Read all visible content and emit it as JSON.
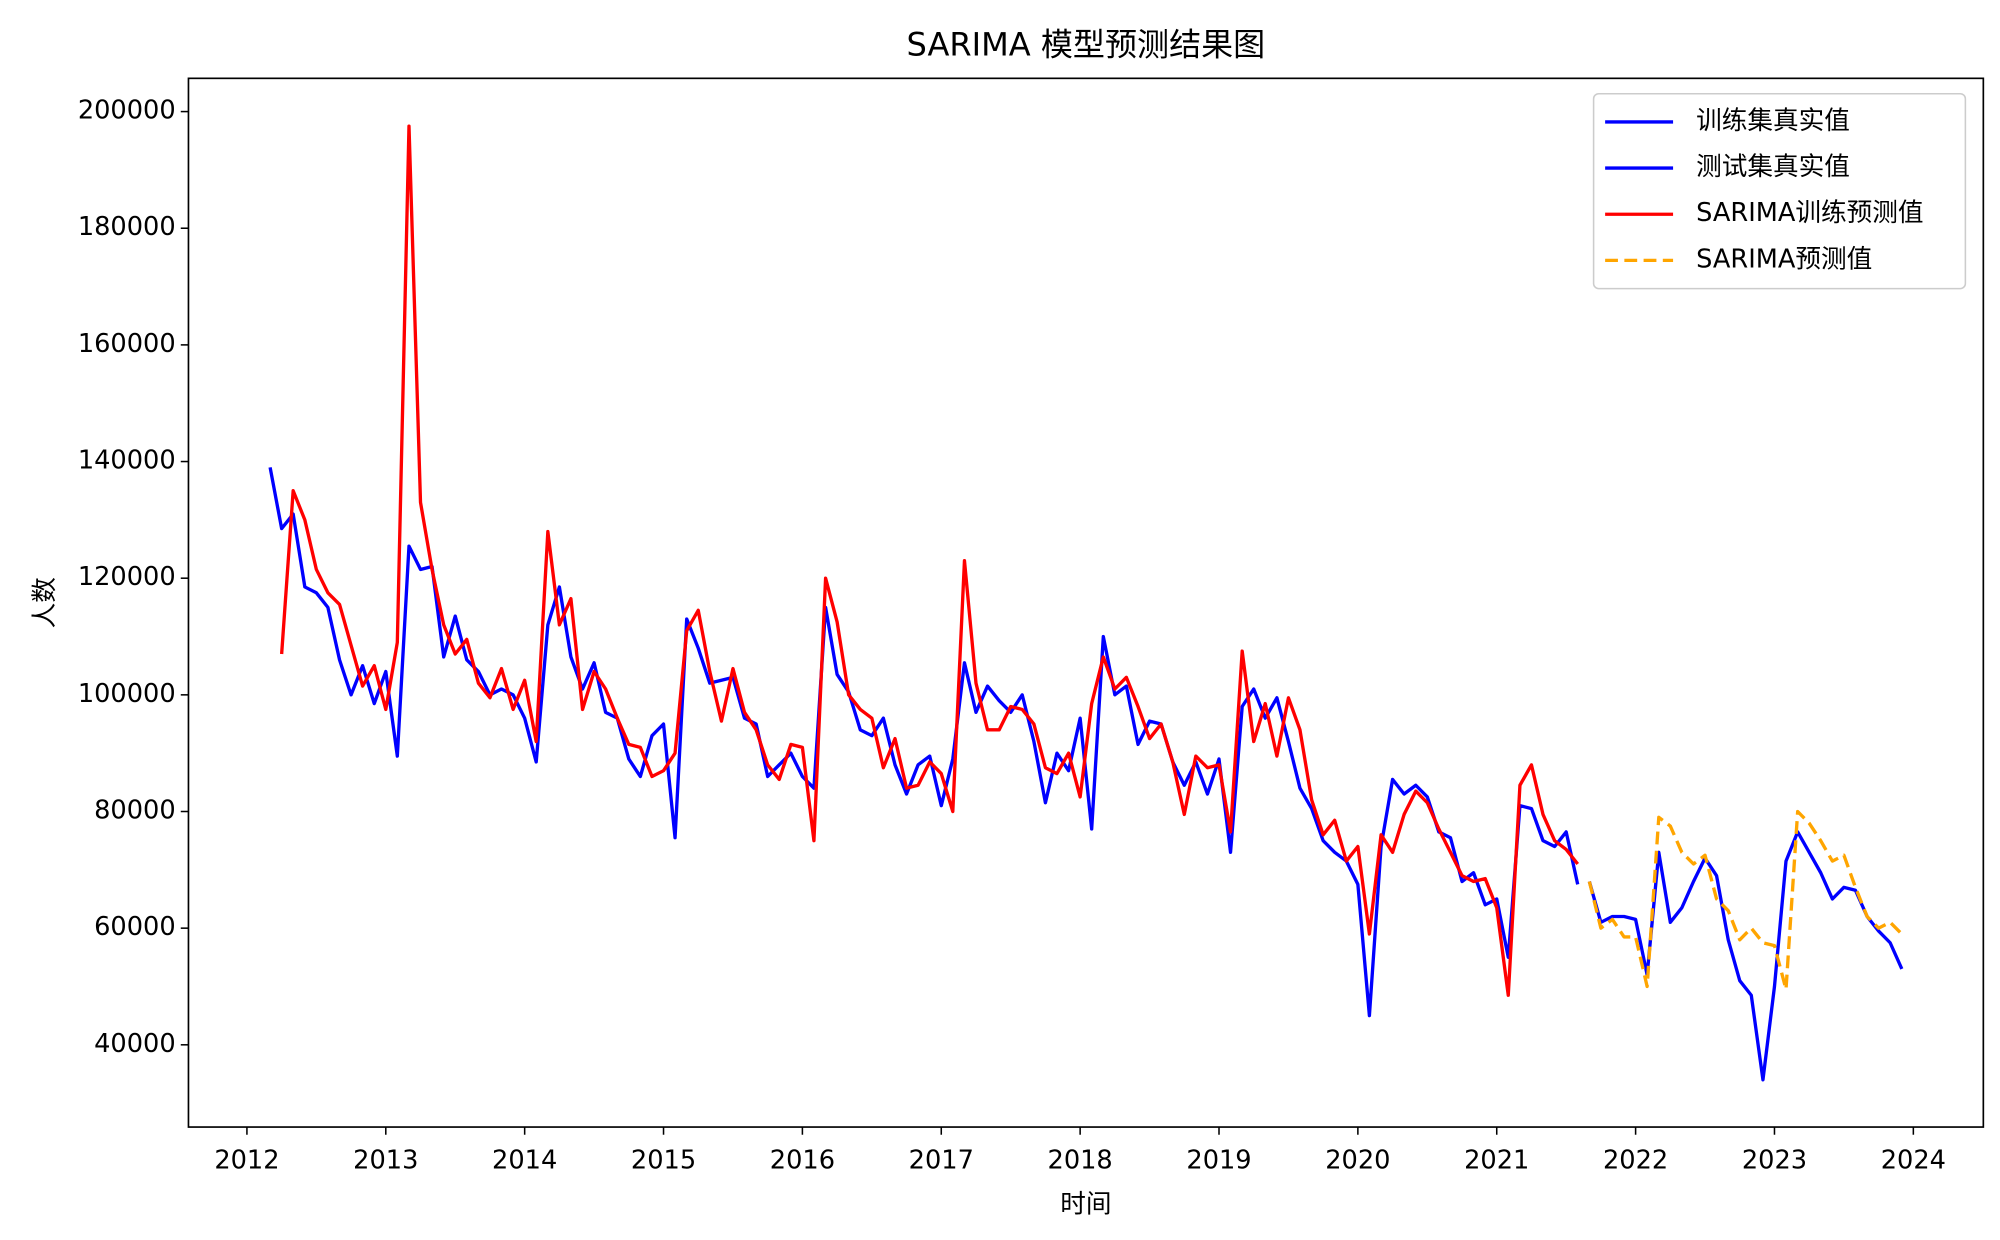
{
  "chart_data": {
    "type": "line",
    "title": "SARIMA 模型预测结果图",
    "x_label": "时间",
    "y_label": "人数",
    "xlim": [
      2011.579,
      2024.504
    ],
    "xticks": [
      2012,
      2013,
      2014,
      2015,
      2016,
      2017,
      2018,
      2019,
      2020,
      2021,
      2022,
      2023,
      2024
    ],
    "ylim": [
      25900,
      205700
    ],
    "yticks": [
      40000,
      60000,
      80000,
      100000,
      120000,
      140000,
      160000,
      180000,
      200000
    ],
    "legend": "upper right",
    "grid": false,
    "series": [
      {
        "name": "训练集真实值",
        "color": "#0000ff",
        "linestyle": "solid",
        "x": [
          2012.167,
          2012.25,
          2012.333,
          2012.417,
          2012.5,
          2012.583,
          2012.667,
          2012.75,
          2012.833,
          2012.917,
          2013,
          2013.083,
          2013.167,
          2013.25,
          2013.333,
          2013.417,
          2013.5,
          2013.583,
          2013.667,
          2013.75,
          2013.833,
          2013.917,
          2014,
          2014.083,
          2014.167,
          2014.25,
          2014.333,
          2014.417,
          2014.5,
          2014.583,
          2014.667,
          2014.75,
          2014.833,
          2014.917,
          2015,
          2015.083,
          2015.167,
          2015.25,
          2015.333,
          2015.417,
          2015.5,
          2015.583,
          2015.667,
          2015.75,
          2015.833,
          2015.917,
          2016,
          2016.083,
          2016.167,
          2016.25,
          2016.333,
          2016.417,
          2016.5,
          2016.583,
          2016.667,
          2016.75,
          2016.833,
          2016.917,
          2017,
          2017.083,
          2017.167,
          2017.25,
          2017.333,
          2017.417,
          2017.5,
          2017.583,
          2017.667,
          2017.75,
          2017.833,
          2017.917,
          2018,
          2018.083,
          2018.167,
          2018.25,
          2018.333,
          2018.417,
          2018.5,
          2018.583,
          2018.667,
          2018.75,
          2018.833,
          2018.917,
          2019,
          2019.083,
          2019.167,
          2019.25,
          2019.333,
          2019.417,
          2019.5,
          2019.583,
          2019.667,
          2019.75,
          2019.833,
          2019.917,
          2020,
          2020.083,
          2020.167,
          2020.25,
          2020.333,
          2020.417,
          2020.5,
          2020.583,
          2020.667,
          2020.75,
          2020.833,
          2020.917,
          2021,
          2021.083,
          2021.167,
          2021.25,
          2021.333,
          2021.417,
          2021.5,
          2021.583
        ],
        "values": [
          139000,
          128500,
          131000,
          118500,
          117500,
          115000,
          106000,
          100000,
          105000,
          98500,
          104000,
          89500,
          125500,
          121500,
          122000,
          106500,
          113500,
          106000,
          104000,
          100000,
          101000,
          100000,
          96000,
          88500,
          112000,
          118500,
          106500,
          101000,
          105500,
          97000,
          96000,
          89000,
          86000,
          93000,
          95000,
          75500,
          113000,
          108000,
          102000,
          102500,
          103000,
          96000,
          95000,
          86000,
          88000,
          90000,
          86000,
          84000,
          115000,
          103500,
          100500,
          94000,
          93000,
          96000,
          88000,
          83000,
          88000,
          89500,
          81000,
          89000,
          105500,
          97000,
          101500,
          99000,
          97000,
          100000,
          92000,
          81500,
          90000,
          87000,
          96000,
          77000,
          110000,
          100000,
          101500,
          91500,
          95500,
          95000,
          88500,
          84500,
          88500,
          83000,
          89000,
          73000,
          98000,
          101000,
          96000,
          99500,
          92000,
          84000,
          80500,
          75000,
          73000,
          71500,
          67500,
          45000,
          74000,
          85500,
          83000,
          84500,
          82500,
          76500,
          75500,
          68000,
          69500,
          64000,
          65000,
          55000,
          81000,
          80500,
          75000,
          74000,
          76500,
          67500
        ]
      },
      {
        "name": "测试集真实值",
        "color": "#0000ff",
        "linestyle": "solid",
        "x": [
          2021.667,
          2021.75,
          2021.833,
          2021.917,
          2022,
          2022.083,
          2022.167,
          2022.25,
          2022.333,
          2022.417,
          2022.5,
          2022.583,
          2022.667,
          2022.75,
          2022.833,
          2022.917,
          2023,
          2023.083,
          2023.167,
          2023.25,
          2023.333,
          2023.417,
          2023.5,
          2023.583,
          2023.667,
          2023.75,
          2023.833,
          2023.917
        ],
        "values": [
          68000,
          61000,
          62000,
          62000,
          61500,
          52000,
          73000,
          61000,
          63500,
          68000,
          72000,
          69000,
          58000,
          51000,
          48500,
          34000,
          50000,
          71500,
          76500,
          73000,
          69500,
          65000,
          67000,
          66500,
          62000,
          59500,
          57500,
          53000
        ]
      },
      {
        "name": "SARIMA训练预测值",
        "color": "#ff0000",
        "linestyle": "solid",
        "x": [
          2012.25,
          2012.333,
          2012.417,
          2012.5,
          2012.583,
          2012.667,
          2012.75,
          2012.833,
          2012.917,
          2013,
          2013.083,
          2013.167,
          2013.25,
          2013.333,
          2013.417,
          2013.5,
          2013.583,
          2013.667,
          2013.75,
          2013.833,
          2013.917,
          2014,
          2014.083,
          2014.167,
          2014.25,
          2014.333,
          2014.417,
          2014.5,
          2014.583,
          2014.667,
          2014.75,
          2014.833,
          2014.917,
          2015,
          2015.083,
          2015.167,
          2015.25,
          2015.333,
          2015.417,
          2015.5,
          2015.583,
          2015.667,
          2015.75,
          2015.833,
          2015.917,
          2016,
          2016.083,
          2016.167,
          2016.25,
          2016.333,
          2016.417,
          2016.5,
          2016.583,
          2016.667,
          2016.75,
          2016.833,
          2016.917,
          2017,
          2017.083,
          2017.167,
          2017.25,
          2017.333,
          2017.417,
          2017.5,
          2017.583,
          2017.667,
          2017.75,
          2017.833,
          2017.917,
          2018,
          2018.083,
          2018.167,
          2018.25,
          2018.333,
          2018.417,
          2018.5,
          2018.583,
          2018.667,
          2018.75,
          2018.833,
          2018.917,
          2019,
          2019.083,
          2019.167,
          2019.25,
          2019.333,
          2019.417,
          2019.5,
          2019.583,
          2019.667,
          2019.75,
          2019.833,
          2019.917,
          2020,
          2020.083,
          2020.167,
          2020.25,
          2020.333,
          2020.417,
          2020.5,
          2020.583,
          2020.667,
          2020.75,
          2020.833,
          2020.917,
          2021,
          2021.083,
          2021.167,
          2021.25,
          2021.333,
          2021.417,
          2021.5,
          2021.583
        ],
        "values": [
          107000,
          135000,
          130000,
          121500,
          117500,
          115500,
          108500,
          101500,
          105000,
          97500,
          109000,
          197500,
          133000,
          121500,
          112000,
          107000,
          109500,
          102000,
          99500,
          104500,
          97500,
          102500,
          92000,
          128000,
          112000,
          116500,
          97500,
          104000,
          101000,
          96000,
          91500,
          91000,
          86000,
          87000,
          90000,
          111000,
          114500,
          104000,
          95500,
          104500,
          97000,
          94000,
          88000,
          85500,
          91500,
          91000,
          75000,
          120000,
          112500,
          100000,
          97500,
          96000,
          87500,
          92500,
          84000,
          84500,
          88500,
          86500,
          80000,
          123000,
          102000,
          94000,
          94000,
          98000,
          97500,
          95000,
          87500,
          86500,
          90000,
          82500,
          98500,
          106500,
          101000,
          103000,
          98000,
          92500,
          95000,
          88500,
          79500,
          89500,
          87500,
          88000,
          76500,
          107500,
          92000,
          98500,
          89500,
          99500,
          94000,
          82000,
          76000,
          78500,
          71500,
          74000,
          59000,
          76000,
          73000,
          79500,
          83500,
          81500,
          77000,
          73000,
          69000,
          68000,
          68500,
          63500,
          48500,
          84500,
          88000,
          79500,
          75000,
          73500,
          71000
        ]
      },
      {
        "name": "SARIMA预测值",
        "color": "#ffa500",
        "linestyle": "dashed",
        "x": [
          2021.667,
          2021.75,
          2021.833,
          2021.917,
          2022,
          2022.083,
          2022.167,
          2022.25,
          2022.333,
          2022.417,
          2022.5,
          2022.583,
          2022.667,
          2022.75,
          2022.833,
          2022.917,
          2023,
          2023.083,
          2023.167,
          2023.25,
          2023.333,
          2023.417,
          2023.5,
          2023.583,
          2023.667,
          2023.75,
          2023.833,
          2023.917
        ],
        "values": [
          68000,
          60000,
          61500,
          58500,
          58500,
          50000,
          79000,
          77500,
          73000,
          71000,
          72500,
          65000,
          63000,
          58000,
          60000,
          57500,
          57000,
          49500,
          80000,
          78000,
          75000,
          71500,
          72500,
          67000,
          62000,
          60000,
          61000,
          59000
        ]
      }
    ]
  }
}
